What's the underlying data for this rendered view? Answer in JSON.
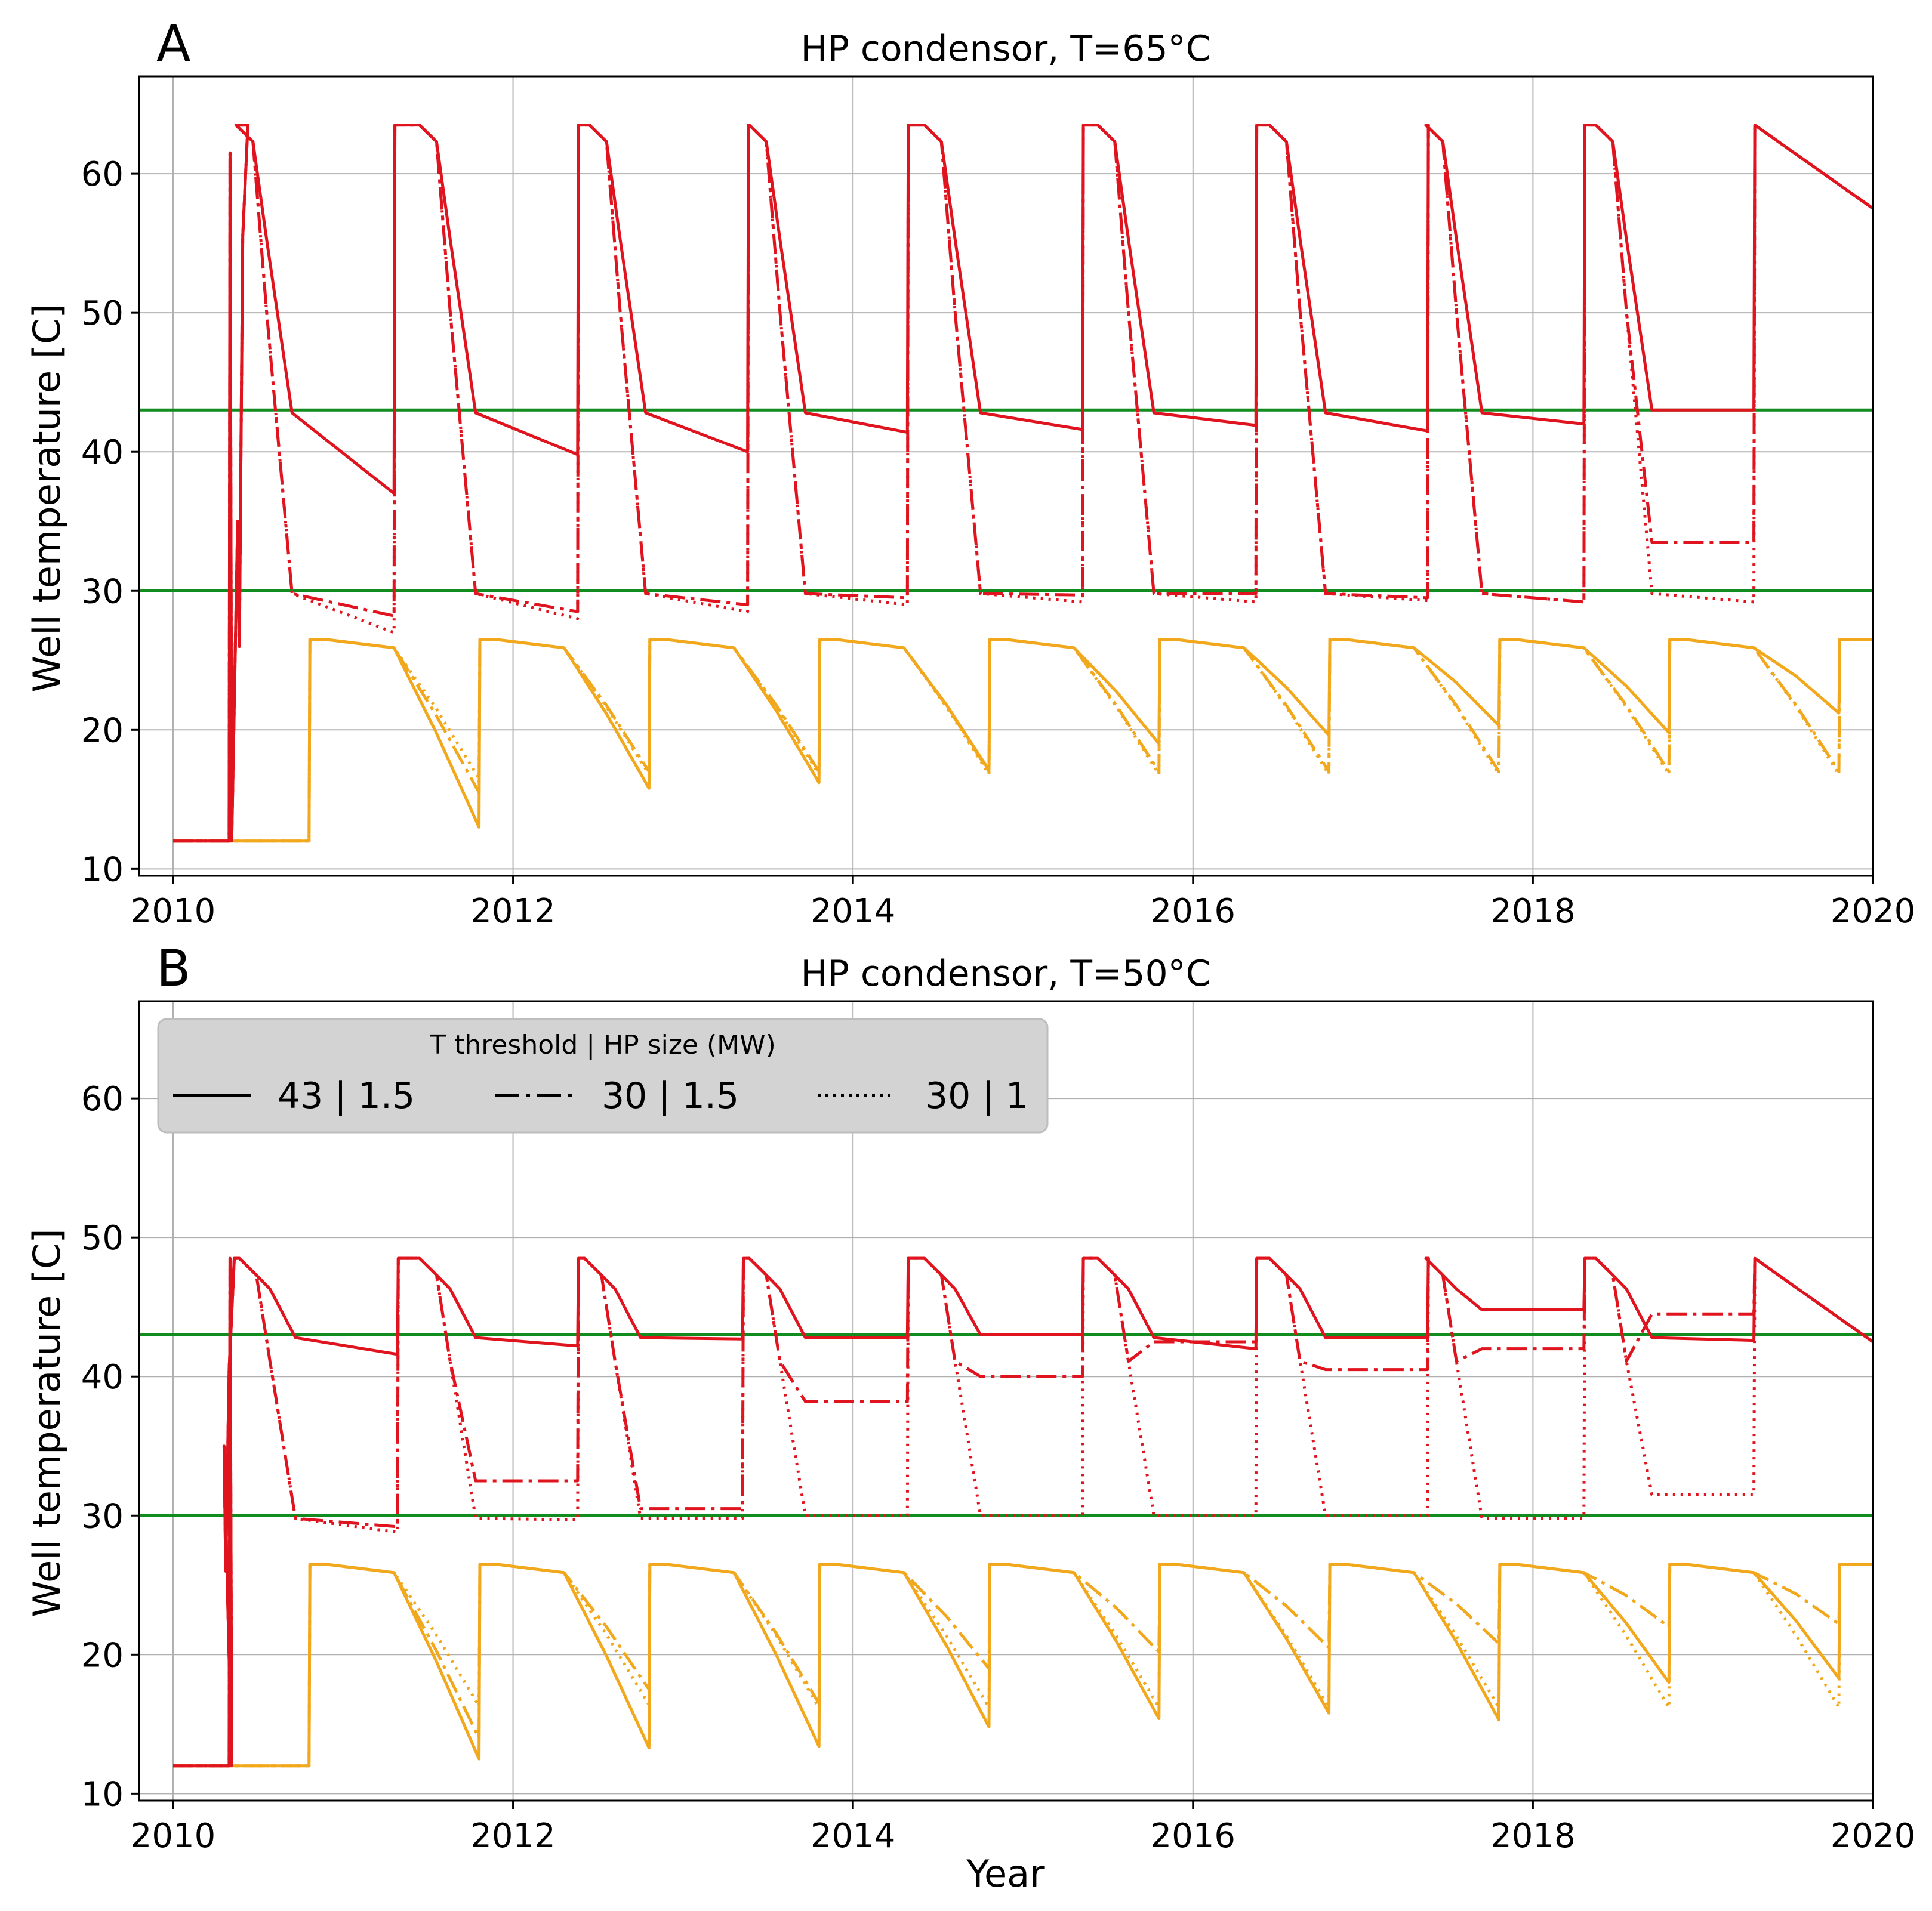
{
  "colors": {
    "hot": "#e0141e",
    "cold": "#f2a81d",
    "threshold": "#118c1e",
    "grid": "#b0b0b0",
    "legend_bg": "#d3d3d3"
  },
  "chart_data": [
    {
      "type": "line",
      "panel_label": "A",
      "title": "HP condensor, T=65°C",
      "xlabel": "",
      "ylabel": "Well temperature [C]",
      "xlim": [
        2009.8,
        2020.0
      ],
      "ylim": [
        9.5,
        67
      ],
      "xticks": [
        2010,
        2012,
        2014,
        2016,
        2018,
        2020
      ],
      "xtick_labels": [
        "2010",
        "2012",
        "2014",
        "2016",
        "2018",
        "2020"
      ],
      "yticks": [
        10,
        20,
        30,
        40,
        50,
        60
      ],
      "ytick_labels": [
        "10",
        "20",
        "30",
        "40",
        "50",
        "60"
      ],
      "grid": true,
      "threshold_lines": [
        43,
        30
      ],
      "hot_well": {
        "max": 63.5,
        "early_spike": 61.5,
        "recovery_start": 2010.38,
        "series": [
          {
            "name": "43 | 1.5",
            "style": "solid",
            "floor": 43,
            "troughs": [
              [
                2011.3,
                37
              ],
              [
                2012.38,
                39.8
              ],
              [
                2013.38,
                40
              ],
              [
                2014.32,
                41.4
              ],
              [
                2015.35,
                41.6
              ],
              [
                2016.37,
                41.9
              ],
              [
                2017.38,
                41.5
              ],
              [
                2018.3,
                42
              ],
              [
                2019.3,
                43
              ]
            ]
          },
          {
            "name": "30 | 1.5",
            "style": "dashdot",
            "floor": 30,
            "troughs": [
              [
                2011.3,
                28.2
              ],
              [
                2012.38,
                28.5
              ],
              [
                2013.38,
                29
              ],
              [
                2014.32,
                29.5
              ],
              [
                2015.35,
                29.7
              ],
              [
                2016.37,
                29.8
              ],
              [
                2017.38,
                29.5
              ],
              [
                2018.3,
                29.2
              ],
              [
                2019.3,
                33.5
              ]
            ]
          },
          {
            "name": "30 | 1",
            "style": "dotted",
            "floor": 30,
            "troughs": [
              [
                2011.3,
                27
              ],
              [
                2012.38,
                28
              ],
              [
                2013.38,
                28.5
              ],
              [
                2014.32,
                29
              ],
              [
                2015.35,
                29.2
              ],
              [
                2016.37,
                29.2
              ],
              [
                2017.38,
                29.3
              ],
              [
                2018.3,
                29.2
              ],
              [
                2019.3,
                29.2
              ]
            ]
          }
        ]
      },
      "cold_well": {
        "initial": 12,
        "max": 26.5,
        "series": [
          {
            "name": "43 | 1.5",
            "style": "solid",
            "lows": [
              13,
              15.8,
              16.2,
              17.1,
              19,
              19.6,
              20.3,
              19.8,
              21.2
            ]
          },
          {
            "name": "30 | 1.5",
            "style": "dashdot",
            "lows": [
              15.5,
              17,
              17,
              17,
              17,
              17,
              17,
              17,
              17
            ]
          },
          {
            "name": "30 | 1",
            "style": "dotted",
            "lows": [
              16.5,
              16.8,
              16.8,
              16.8,
              16.8,
              16.8,
              16.8,
              16.8,
              16.8
            ]
          }
        ]
      }
    },
    {
      "type": "line",
      "panel_label": "B",
      "title": "HP condensor, T=50°C",
      "xlabel": "Year",
      "ylabel": "Well temperature [C]",
      "xlim": [
        2009.8,
        2020.0
      ],
      "ylim": [
        9.5,
        67
      ],
      "xticks": [
        2010,
        2012,
        2014,
        2016,
        2018,
        2020
      ],
      "xtick_labels": [
        "2010",
        "2012",
        "2014",
        "2016",
        "2018",
        "2020"
      ],
      "yticks": [
        10,
        20,
        30,
        40,
        50,
        60
      ],
      "ytick_labels": [
        "10",
        "20",
        "30",
        "40",
        "50",
        "60"
      ],
      "grid": true,
      "threshold_lines": [
        43,
        30
      ],
      "hot_well": {
        "max": 48.5,
        "early_spike": 48.5,
        "recovery_start": 2010.3,
        "series": [
          {
            "name": "43 | 1.5",
            "style": "solid",
            "floor": 43,
            "troughs": [
              [
                2011.32,
                41.6
              ],
              [
                2012.38,
                42.2
              ],
              [
                2013.35,
                42.7
              ],
              [
                2014.32,
                42.8
              ],
              [
                2015.35,
                43
              ],
              [
                2016.37,
                42
              ],
              [
                2017.38,
                42.8
              ],
              [
                2018.3,
                44.8
              ],
              [
                2019.3,
                42.6
              ]
            ]
          },
          {
            "name": "30 | 1.5",
            "style": "dashdot",
            "floor": 30,
            "troughs": [
              [
                2011.32,
                29.2
              ],
              [
                2012.38,
                32.5
              ],
              [
                2013.35,
                30.5
              ],
              [
                2014.32,
                38.2
              ],
              [
                2015.35,
                40
              ],
              [
                2016.37,
                42.5
              ],
              [
                2017.38,
                40.5
              ],
              [
                2018.3,
                42
              ],
              [
                2019.3,
                44.5
              ]
            ]
          },
          {
            "name": "30 | 1",
            "style": "dotted",
            "floor": 30,
            "troughs": [
              [
                2011.32,
                28.8
              ],
              [
                2012.38,
                29.7
              ],
              [
                2013.35,
                29.8
              ],
              [
                2014.32,
                30
              ],
              [
                2015.35,
                30
              ],
              [
                2016.37,
                30
              ],
              [
                2017.38,
                30
              ],
              [
                2018.3,
                29.8
              ],
              [
                2019.3,
                31.5
              ]
            ]
          }
        ]
      },
      "cold_well": {
        "initial": 12,
        "max": 26.5,
        "series": [
          {
            "name": "43 | 1.5",
            "style": "solid",
            "lows": [
              12.5,
              13.3,
              13.4,
              14.8,
              15.4,
              15.8,
              15.3,
              18,
              18.3
            ]
          },
          {
            "name": "30 | 1.5",
            "style": "dashdot",
            "lows": [
              14,
              17.5,
              16.5,
              19,
              20.2,
              20.5,
              20.8,
              22,
              22.2
            ]
          },
          {
            "name": "30 | 1",
            "style": "dotted",
            "lows": [
              16.3,
              16.4,
              16.2,
              16.2,
              16.2,
              16.2,
              16.2,
              16.2,
              16.2
            ]
          }
        ]
      }
    }
  ],
  "legend": {
    "title": "T threshold | HP size (MW)",
    "entries": [
      {
        "label": "43 | 1.5",
        "style": "solid"
      },
      {
        "label": "30 | 1.5",
        "style": "dashdot"
      },
      {
        "label": "30 | 1",
        "style": "dotted"
      }
    ]
  }
}
